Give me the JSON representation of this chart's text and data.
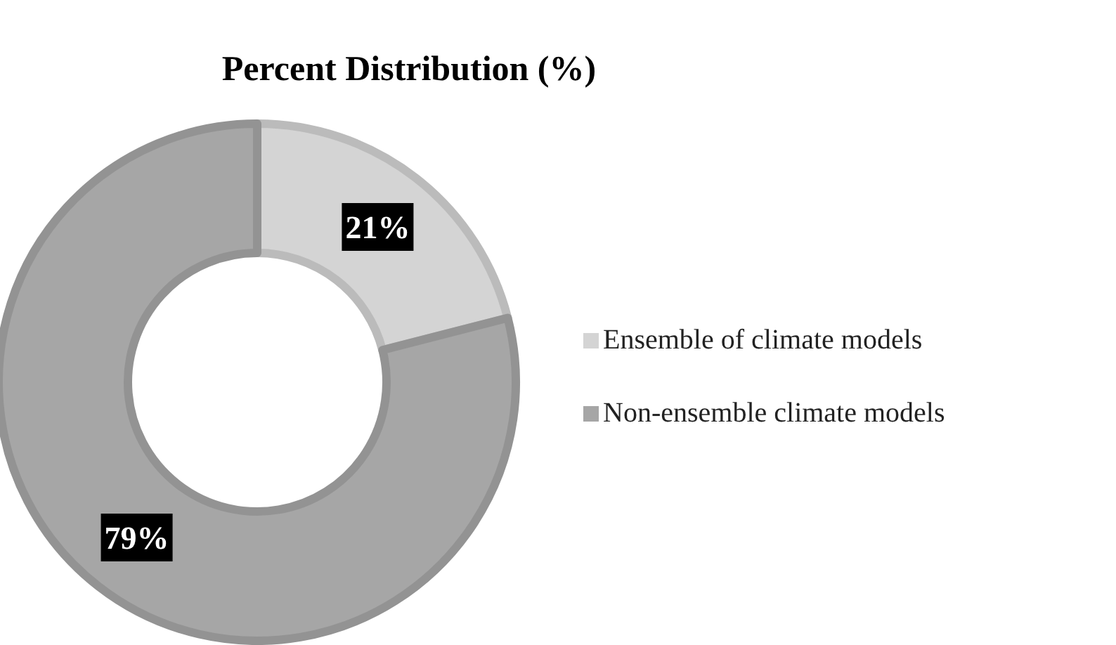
{
  "chart_data": {
    "type": "donut",
    "title": "Percent Distribution (%)",
    "categories": [
      "Ensemble of climate models",
      "Non-ensemble climate models"
    ],
    "values": [
      21,
      79
    ],
    "colors": [
      "#d4d4d4",
      "#a6a6a6"
    ],
    "value_labels": [
      "21%",
      "79%"
    ],
    "legend": "right"
  }
}
